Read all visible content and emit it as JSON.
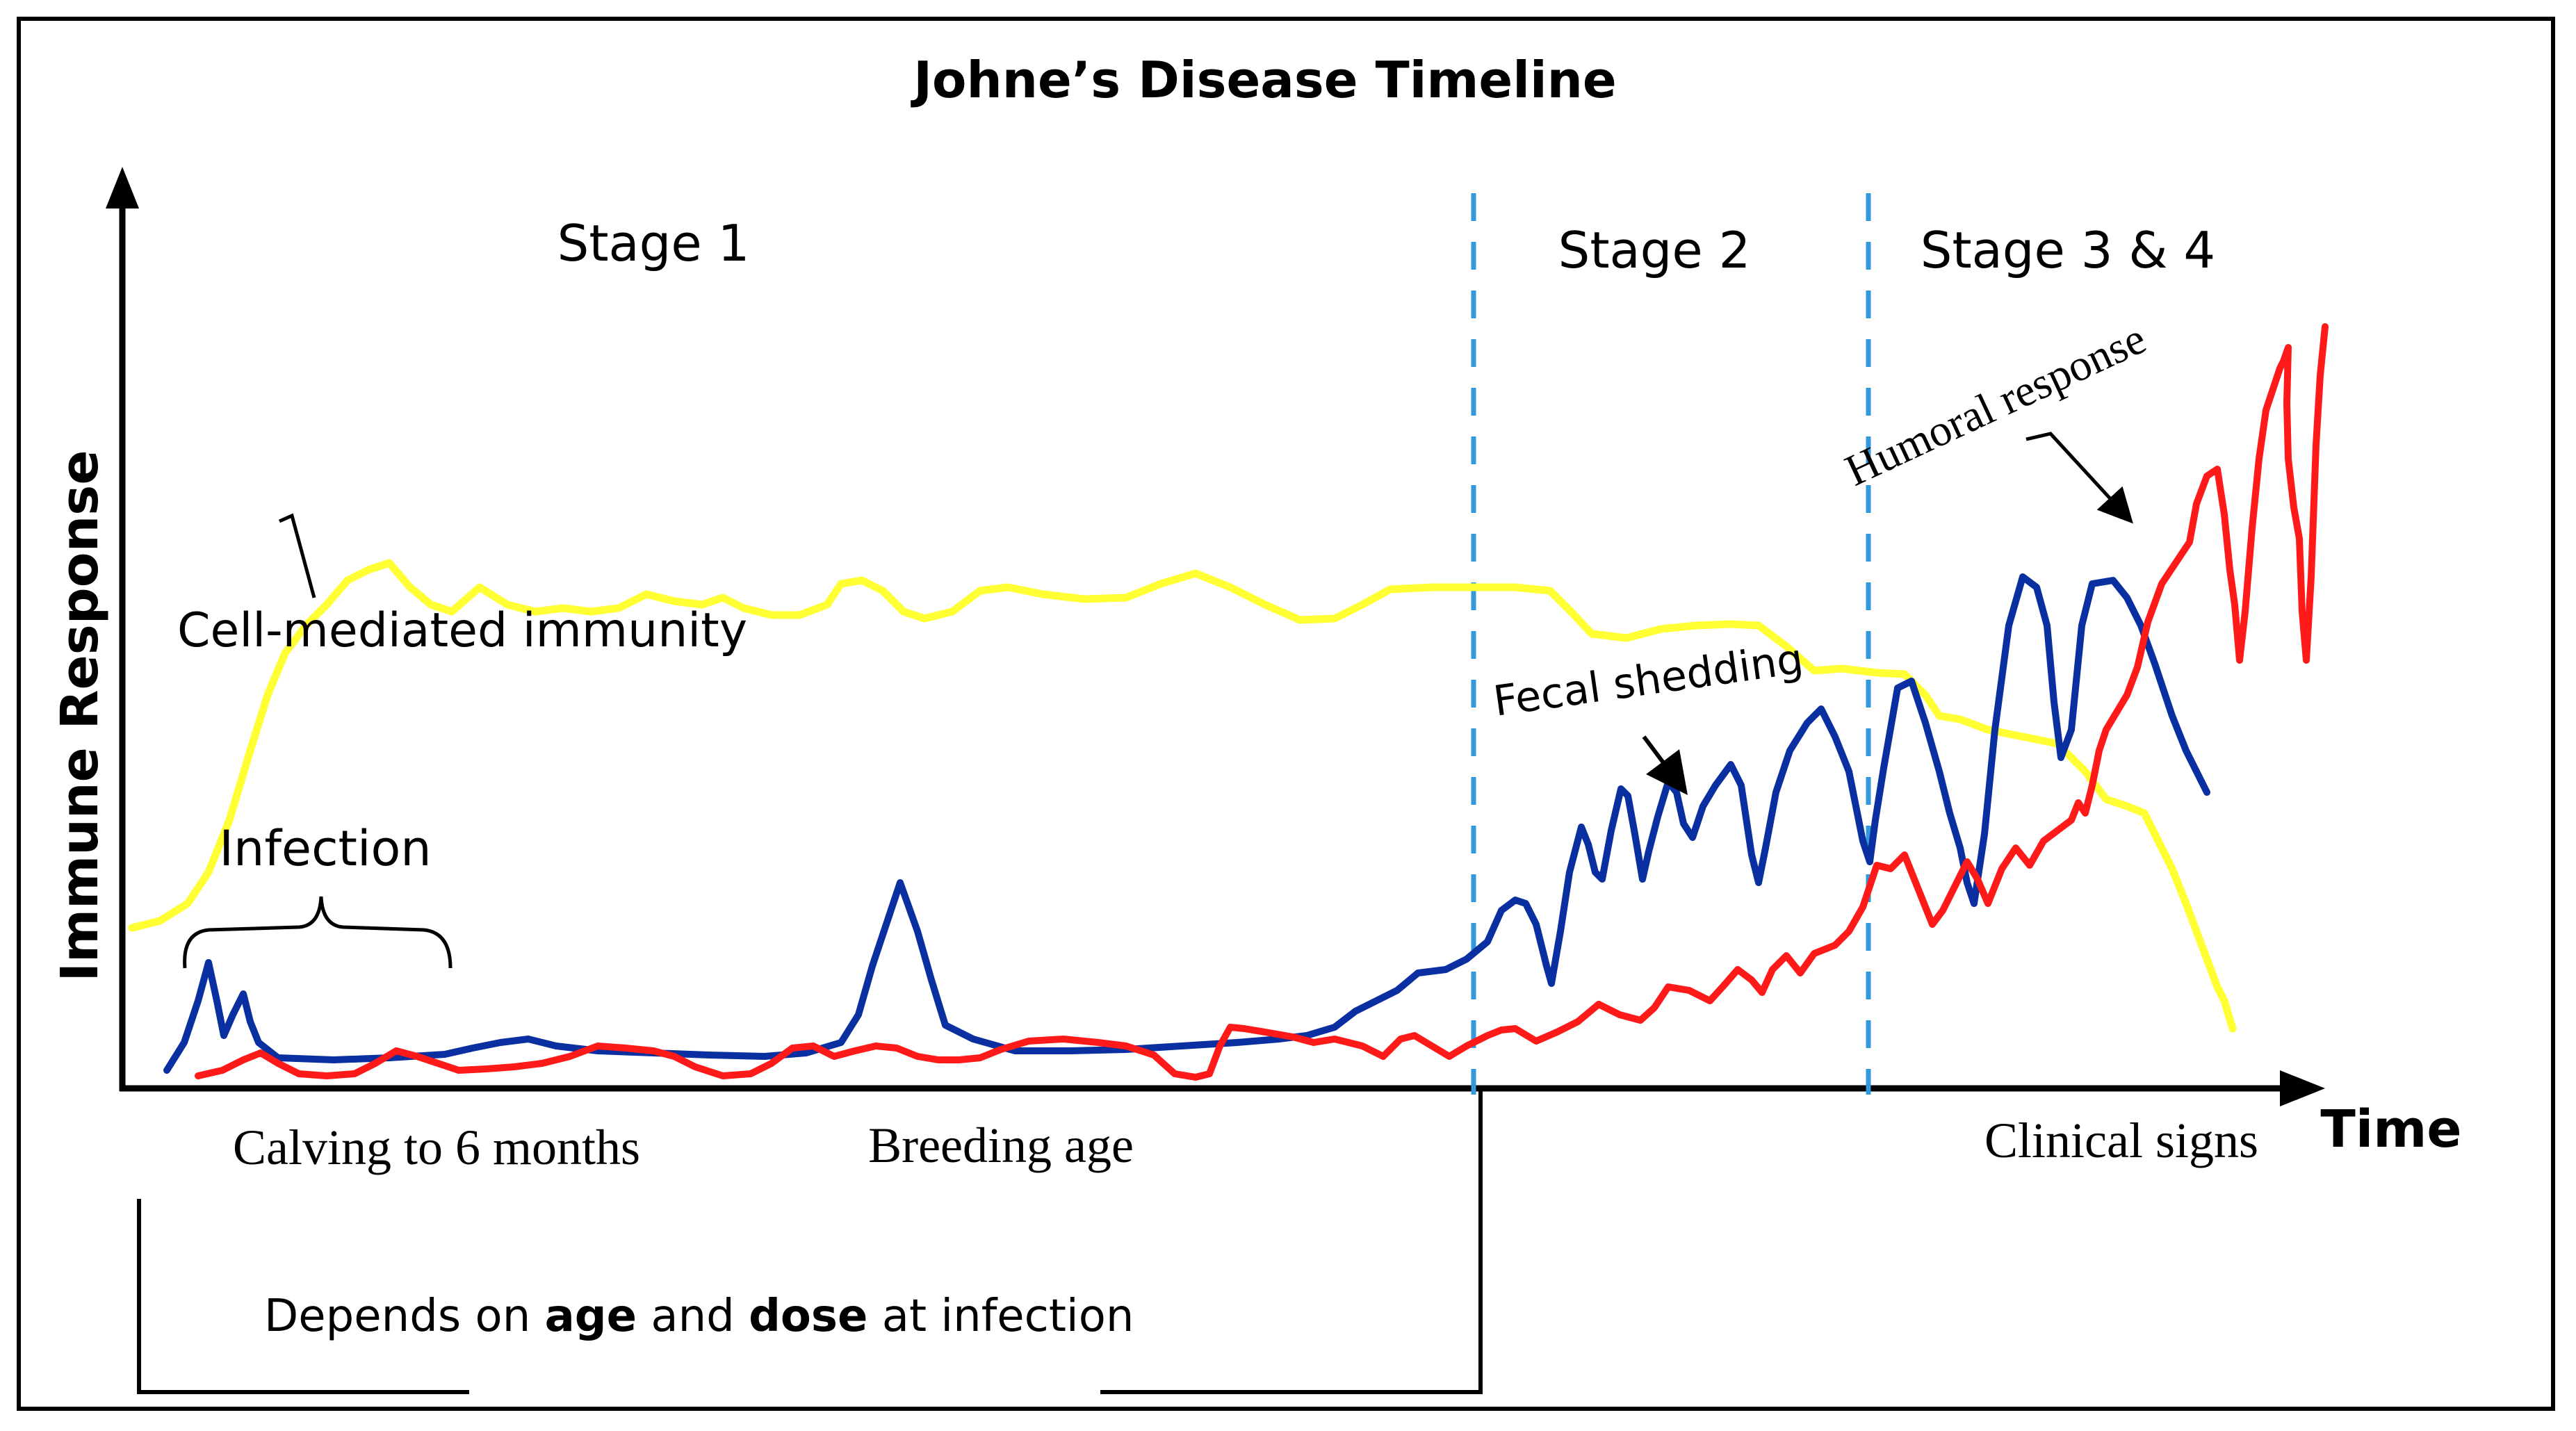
{
  "title": "Johne’s Disease Timeline",
  "axes": {
    "y_label": "Immune Response",
    "x_label": "Time"
  },
  "stages": {
    "stage1": "Stage 1",
    "stage2": "Stage 2",
    "stage34": "Stage 3 & 4"
  },
  "annotations": {
    "cell_mediated": "Cell-mediated immunity",
    "infection": "Infection",
    "fecal_shedding": "Fecal shedding",
    "humoral": "Humoral response"
  },
  "timeline_labels": {
    "calving": "Calving to 6 months",
    "breeding": "Breeding age",
    "clinical": "Clinical signs"
  },
  "footnote": {
    "prefix": "Depends on ",
    "age": "age",
    "middle": " and ",
    "dose": "dose",
    "suffix": " at infection"
  },
  "colors": {
    "cell_mediated_line": "#ffff33",
    "fecal_shedding_line": "#0a2fa0",
    "humoral_line": "#ff1a1a",
    "stage_divider": "#3399dd"
  }
}
